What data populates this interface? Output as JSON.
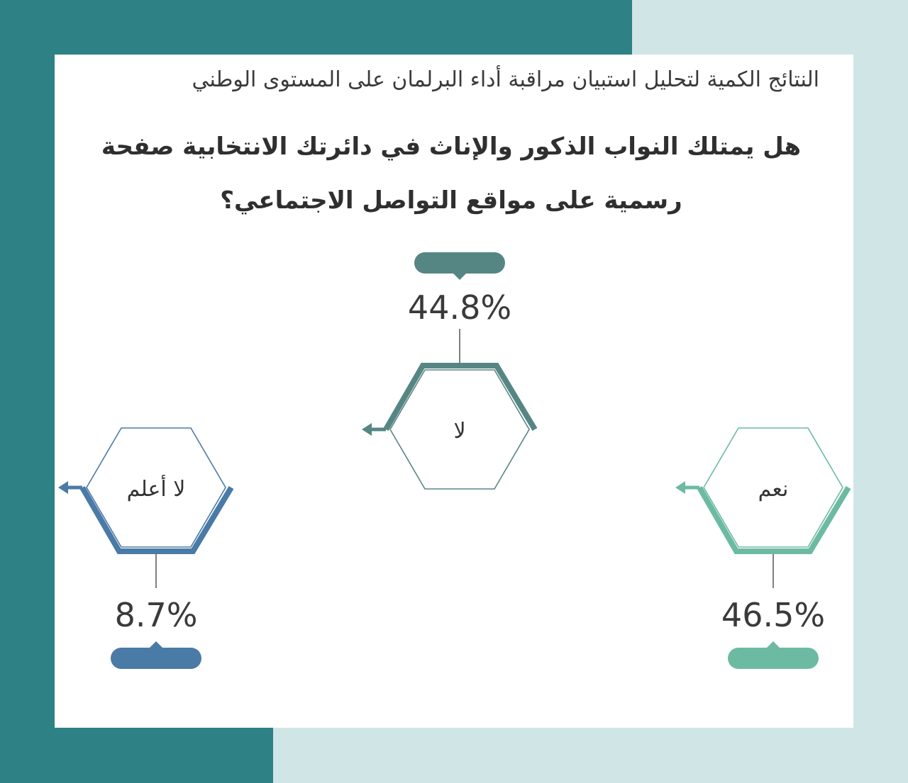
{
  "subtitle": "النتائج الكمية لتحليل استبيان مراقبة أداء البرلمان على المستوى الوطني",
  "question": "هل يمتلك النواب الذكور والإناث في دائرتك الانتخابية صفحة رسمية على مواقع التواصل الاجتماعي؟",
  "colors": {
    "background": "#d0e5e6",
    "frame": "#2e8184",
    "card": "#ffffff"
  },
  "chart_data": {
    "type": "infographic",
    "unit": "%",
    "categories": [
      "نعم",
      "لا",
      "لا أعلم"
    ],
    "values": [
      46.5,
      44.8,
      8.7
    ],
    "value_labels": [
      "46.5%",
      "44.8%",
      "8.7%"
    ],
    "colors": [
      "#6dbaa3",
      "#568683",
      "#4a7aa6"
    ]
  }
}
